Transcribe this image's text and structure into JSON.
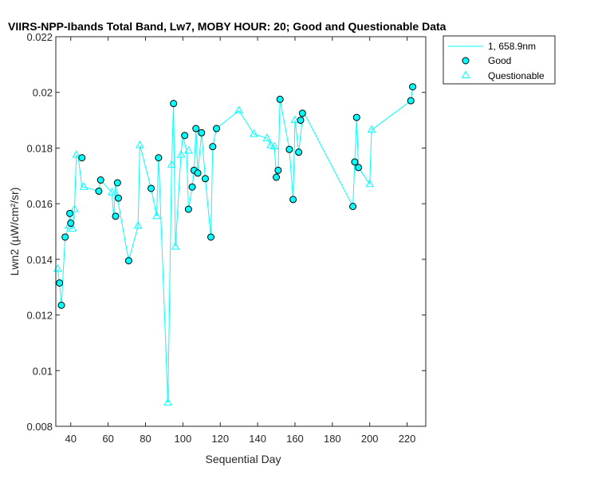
{
  "chart_data": {
    "type": "scatter",
    "title": "VIIRS-NPP-Ibands Total Band, Lw7, MOBY HOUR: 20;  Good and Questionable Data",
    "xlabel": "Sequential Day",
    "ylabel": "Lwn2 (µW/cm²/sr)",
    "xlim": [
      32,
      230
    ],
    "ylim": [
      0.008,
      0.022
    ],
    "xticks": [
      40,
      60,
      80,
      100,
      120,
      140,
      160,
      180,
      200,
      220
    ],
    "yticks": [
      0.008,
      0.01,
      0.012,
      0.014,
      0.016,
      0.018,
      0.02,
      0.022
    ],
    "xtick_labels": [
      "40",
      "60",
      "80",
      "100",
      "120",
      "140",
      "160",
      "180",
      "200",
      "220"
    ],
    "ytick_labels": [
      "0.008",
      "0.01",
      "0.012",
      "0.014",
      "0.016",
      "0.018",
      "0.02",
      "0.022"
    ],
    "grid": false,
    "legend_position": "outside-top-right",
    "legend": [
      "1, 658.9nm",
      "Good",
      "Questionable"
    ],
    "colors": {
      "line": "#00FFFF",
      "marker_fill": "#00FFFF",
      "marker_edge": "#000000",
      "axis": "#262626"
    },
    "line_series": {
      "name": "1, 658.9nm",
      "x": [
        33,
        34,
        35,
        37,
        39,
        39.5,
        40,
        41,
        42,
        43,
        44,
        46,
        47,
        55,
        56,
        62,
        63,
        64,
        65,
        71,
        76,
        77,
        83,
        86,
        87,
        92,
        94,
        95,
        96,
        99,
        100,
        102,
        103,
        105,
        106,
        107,
        108,
        110,
        112,
        115,
        116,
        118,
        130,
        138,
        145,
        147,
        149,
        150,
        151,
        152,
        157,
        159,
        160,
        162,
        164,
        165,
        191,
        192,
        193,
        194,
        200,
        201,
        222,
        223
      ],
      "y": [
        0.01365,
        0.01315,
        0.01235,
        0.0148,
        0.0152,
        0.01565,
        0.0153,
        0.0151,
        0.0158,
        0.01775,
        0.01765,
        0.0166,
        0.0166,
        0.01645,
        0.01685,
        0.0164,
        0.01555,
        0.01675,
        0.0162,
        0.01395,
        0.0152,
        0.0181,
        0.01655,
        0.01555,
        0.01765,
        0.00885,
        0.0174,
        0.0196,
        0.01445,
        0.01775,
        0.01845,
        0.0179,
        0.0158,
        0.0166,
        0.0172,
        0.0187,
        0.0171,
        0.01855,
        0.0169,
        0.0148,
        0.01805,
        0.0187,
        0.01935,
        0.0185,
        0.01835,
        0.0181,
        0.01805,
        0.01695,
        0.0172,
        0.01975,
        0.01795,
        0.01615,
        0.019,
        0.01785,
        0.01905,
        0.01925,
        0.0159,
        0.0175,
        0.0191,
        0.0173,
        0.0167,
        0.01865,
        0.0197,
        0.0202
      ]
    },
    "series": [
      {
        "name": "Good",
        "x": [
          34,
          35,
          37,
          39.5,
          40,
          46,
          55,
          56,
          64,
          65,
          65.5,
          71,
          83,
          87,
          95,
          101,
          103,
          105,
          106,
          107,
          108,
          110,
          112,
          115,
          116,
          118,
          150,
          151,
          152,
          157,
          159,
          162,
          163,
          164,
          191,
          192,
          193,
          194,
          222,
          223
        ],
        "y": [
          0.01315,
          0.01235,
          0.0148,
          0.01565,
          0.0153,
          0.01765,
          0.01645,
          0.01685,
          0.01555,
          0.01675,
          0.0162,
          0.01395,
          0.01655,
          0.01765,
          0.0196,
          0.01845,
          0.0158,
          0.0166,
          0.0172,
          0.0187,
          0.0171,
          0.01855,
          0.0169,
          0.0148,
          0.01805,
          0.0187,
          0.01695,
          0.0172,
          0.01975,
          0.01795,
          0.01615,
          0.01785,
          0.019,
          0.01925,
          0.0159,
          0.0175,
          0.0191,
          0.0173,
          0.0197,
          0.0202
        ]
      },
      {
        "name": "Questionable",
        "x": [
          33,
          39,
          41,
          42,
          43,
          47,
          62,
          76,
          77,
          86,
          92,
          94,
          96,
          99,
          103,
          130,
          138,
          145,
          147,
          149,
          160,
          200,
          201
        ],
        "y": [
          0.01365,
          0.0152,
          0.0151,
          0.0158,
          0.01775,
          0.0166,
          0.0164,
          0.0152,
          0.0181,
          0.01555,
          0.00885,
          0.0174,
          0.01445,
          0.01775,
          0.0179,
          0.01935,
          0.0185,
          0.01835,
          0.0181,
          0.01805,
          0.019,
          0.0167,
          0.01865
        ]
      }
    ]
  }
}
